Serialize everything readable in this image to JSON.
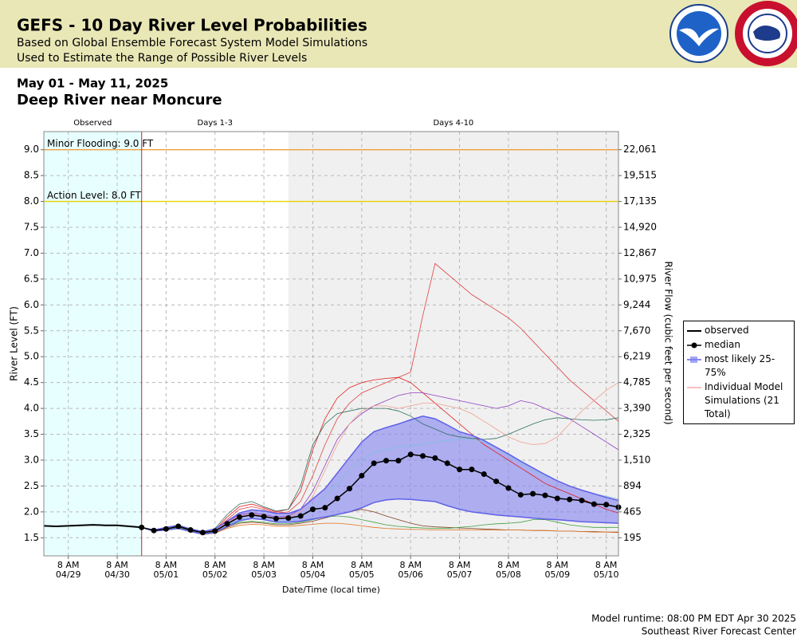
{
  "header": {
    "title": "GEFS - 10 Day River Level Probabilities",
    "subtitle1": "Based on Global Ensemble Forecast System Model Simulations",
    "subtitle2": "Used to Estimate the Range of Possible River Levels"
  },
  "chart_data": {
    "type": "hydrograph",
    "date_range": "May 01 - May 11, 2025",
    "title": "Deep River near Moncure",
    "ylabel": "River Level (FT)",
    "y2label": "River Flow (cubic feet per second)",
    "xlabel": "Date/Time (local time)",
    "ylim": [
      1.15,
      9.35
    ],
    "yticks": [
      {
        "value": 1.5,
        "label": "1.5"
      },
      {
        "value": 2,
        "label": "2.0"
      },
      {
        "value": 2.5,
        "label": "2.5"
      },
      {
        "value": 3,
        "label": "3.0"
      },
      {
        "value": 3.5,
        "label": "3.5"
      },
      {
        "value": 4,
        "label": "4.0"
      },
      {
        "value": 4.5,
        "label": "4.5"
      },
      {
        "value": 5,
        "label": "5.0"
      },
      {
        "value": 5.5,
        "label": "5.5"
      },
      {
        "value": 6,
        "label": "6.0"
      },
      {
        "value": 6.5,
        "label": "6.5"
      },
      {
        "value": 7,
        "label": "7.0"
      },
      {
        "value": 7.5,
        "label": "7.5"
      },
      {
        "value": 8,
        "label": "8.0"
      },
      {
        "value": 8.5,
        "label": "8.5"
      },
      {
        "value": 9,
        "label": "9.0"
      }
    ],
    "y2ticks": [
      {
        "value": 195,
        "label": "195"
      },
      {
        "value": 465,
        "label": "465"
      },
      {
        "value": 894,
        "label": "894"
      },
      {
        "value": 1510,
        "label": "1,510"
      },
      {
        "value": 2325,
        "label": "2,325"
      },
      {
        "value": 3390,
        "label": "3,390"
      },
      {
        "value": 4785,
        "label": "4,785"
      },
      {
        "value": 6219,
        "label": "6,219"
      },
      {
        "value": 7670,
        "label": "7,670"
      },
      {
        "value": 9244,
        "label": "9,244"
      },
      {
        "value": 10975,
        "label": "10,975"
      },
      {
        "value": 12867,
        "label": "12,867"
      },
      {
        "value": 14920,
        "label": "14,920"
      },
      {
        "value": 17135,
        "label": "17,135"
      },
      {
        "value": 19515,
        "label": "19,515"
      },
      {
        "value": 22061,
        "label": "22,061"
      }
    ],
    "xlim": [
      "2025-04-28T20:00",
      "2025-05-10T14:00"
    ],
    "xticks": [
      {
        "value": "2025-04-29T08:00",
        "label": "8 AM",
        "date": "04/29"
      },
      {
        "value": "2025-04-30T08:00",
        "label": "8 AM",
        "date": "04/30"
      },
      {
        "value": "2025-05-01T08:00",
        "label": "8 AM",
        "date": "05/01"
      },
      {
        "value": "2025-05-02T08:00",
        "label": "8 AM",
        "date": "05/02"
      },
      {
        "value": "2025-05-03T08:00",
        "label": "8 AM",
        "date": "05/03"
      },
      {
        "value": "2025-05-04T08:00",
        "label": "8 AM",
        "date": "05/04"
      },
      {
        "value": "2025-05-05T08:00",
        "label": "8 AM",
        "date": "05/05"
      },
      {
        "value": "2025-05-06T08:00",
        "label": "8 AM",
        "date": "05/06"
      },
      {
        "value": "2025-05-07T08:00",
        "label": "8 AM",
        "date": "05/07"
      },
      {
        "value": "2025-05-08T08:00",
        "label": "8 AM",
        "date": "05/08"
      },
      {
        "value": "2025-05-09T08:00",
        "label": "8 AM",
        "date": "05/09"
      },
      {
        "value": "2025-05-10T08:00",
        "label": "8 AM",
        "date": "05/10"
      }
    ],
    "grid": true,
    "regions": [
      {
        "label": "Observed",
        "start": "2025-04-28T20:00",
        "end": "2025-04-30T20:00",
        "color": "#e8ffff"
      },
      {
        "label": "Days 1-3",
        "start": "2025-04-30T20:00",
        "end": "2025-05-03T20:00",
        "color": "#ffffff"
      },
      {
        "label": "Days 4-10",
        "start": "2025-05-03T20:00",
        "end": "2025-05-10T14:00",
        "color": "#f0f0f0"
      }
    ],
    "thresholds": [
      {
        "label": "Minor Flooding: 9.0 FT",
        "value": 9,
        "color": "#f0a040"
      },
      {
        "label": "Action Level: 8.0 FT",
        "value": 8,
        "color": "#e8d400"
      }
    ],
    "x": [
      "2025-04-30T20:00",
      "2025-05-01T02:00",
      "2025-05-01T08:00",
      "2025-05-01T14:00",
      "2025-05-01T20:00",
      "2025-05-02T02:00",
      "2025-05-02T08:00",
      "2025-05-02T14:00",
      "2025-05-02T20:00",
      "2025-05-03T02:00",
      "2025-05-03T08:00",
      "2025-05-03T14:00",
      "2025-05-03T20:00",
      "2025-05-04T02:00",
      "2025-05-04T08:00",
      "2025-05-04T14:00",
      "2025-05-04T20:00",
      "2025-05-05T02:00",
      "2025-05-05T08:00",
      "2025-05-05T14:00",
      "2025-05-05T20:00",
      "2025-05-06T02:00",
      "2025-05-06T08:00",
      "2025-05-06T14:00",
      "2025-05-06T20:00",
      "2025-05-07T02:00",
      "2025-05-07T08:00",
      "2025-05-07T14:00",
      "2025-05-07T20:00",
      "2025-05-08T02:00",
      "2025-05-08T08:00",
      "2025-05-08T14:00",
      "2025-05-08T20:00",
      "2025-05-09T02:00",
      "2025-05-09T08:00",
      "2025-05-09T14:00",
      "2025-05-09T20:00",
      "2025-05-10T02:00",
      "2025-05-10T08:00",
      "2025-05-10T14:00"
    ],
    "observed": {
      "name": "observed",
      "color": "#000000",
      "x": [
        "2025-04-28T20:00",
        "2025-04-29T02:00",
        "2025-04-29T08:00",
        "2025-04-29T14:00",
        "2025-04-29T20:00",
        "2025-04-30T02:00",
        "2025-04-30T08:00",
        "2025-04-30T14:00",
        "2025-04-30T20:00"
      ],
      "values": [
        1.73,
        1.72,
        1.73,
        1.74,
        1.75,
        1.74,
        1.74,
        1.72,
        1.7
      ]
    },
    "band": {
      "name": "most likely 25-75%",
      "color": "#8080f0",
      "upper": [
        1.7,
        1.65,
        1.7,
        1.74,
        1.67,
        1.62,
        1.67,
        1.82,
        1.98,
        2.04,
        2.02,
        1.97,
        1.97,
        2.05,
        2.25,
        2.45,
        2.75,
        3.05,
        3.35,
        3.55,
        3.63,
        3.7,
        3.78,
        3.85,
        3.8,
        3.68,
        3.55,
        3.48,
        3.38,
        3.25,
        3.12,
        2.98,
        2.85,
        2.72,
        2.6,
        2.5,
        2.42,
        2.35,
        2.28,
        2.22
      ],
      "lower": [
        1.7,
        1.63,
        1.65,
        1.68,
        1.62,
        1.57,
        1.6,
        1.72,
        1.83,
        1.87,
        1.85,
        1.8,
        1.8,
        1.82,
        1.86,
        1.9,
        1.95,
        2.0,
        2.08,
        2.18,
        2.23,
        2.25,
        2.24,
        2.22,
        2.2,
        2.12,
        2.05,
        2.0,
        1.97,
        1.94,
        1.92,
        1.9,
        1.88,
        1.86,
        1.85,
        1.83,
        1.81,
        1.8,
        1.79,
        1.78
      ]
    },
    "median": {
      "name": "median",
      "color": "#000000",
      "values": [
        1.7,
        1.64,
        1.67,
        1.72,
        1.65,
        1.6,
        1.63,
        1.77,
        1.9,
        1.94,
        1.91,
        1.87,
        1.88,
        1.92,
        2.05,
        2.08,
        2.26,
        2.45,
        2.7,
        2.94,
        2.99,
        2.99,
        3.11,
        3.08,
        3.04,
        2.94,
        2.82,
        2.82,
        2.73,
        2.59,
        2.46,
        2.33,
        2.35,
        2.32,
        2.26,
        2.24,
        2.22,
        2.15,
        2.14,
        2.09
      ]
    },
    "members": {
      "name": "Individual Model Simulations (21 Total)",
      "color": "#f08080",
      "series": [
        {
          "color": "#e04040",
          "values": [
            1.7,
            1.64,
            1.67,
            1.72,
            1.65,
            1.6,
            1.65,
            1.85,
            2.05,
            2.1,
            2.05,
            1.98,
            2.0,
            2.2,
            2.7,
            3.3,
            3.8,
            4.1,
            4.3,
            4.4,
            4.5,
            4.6,
            4.7,
            5.8,
            6.8,
            6.6,
            6.4,
            6.2,
            6.05,
            5.9,
            5.75,
            5.55,
            5.3,
            5.05,
            4.8,
            4.55,
            4.35,
            4.15,
            3.95,
            3.75
          ]
        },
        {
          "color": "#e02020",
          "values": [
            1.7,
            1.64,
            1.67,
            1.72,
            1.65,
            1.6,
            1.65,
            1.9,
            2.1,
            2.15,
            2.08,
            2.0,
            2.05,
            2.4,
            3.2,
            3.8,
            4.2,
            4.4,
            4.5,
            4.55,
            4.58,
            4.6,
            4.5,
            4.3,
            4.1,
            3.9,
            3.7,
            3.5,
            3.3,
            3.15,
            3.0,
            2.85,
            2.7,
            2.55,
            2.45,
            2.35,
            2.25,
            2.15,
            2.05,
            1.98
          ]
        },
        {
          "color": "#9040c0",
          "values": [
            1.7,
            1.64,
            1.66,
            1.71,
            1.64,
            1.59,
            1.63,
            1.8,
            1.95,
            1.98,
            1.95,
            1.9,
            1.92,
            2.05,
            2.4,
            2.9,
            3.4,
            3.7,
            3.9,
            4.05,
            4.15,
            4.25,
            4.3,
            4.3,
            4.25,
            4.2,
            4.15,
            4.1,
            4.05,
            4.0,
            4.05,
            4.15,
            4.1,
            4.0,
            3.9,
            3.8,
            3.65,
            3.5,
            3.35,
            3.2
          ]
        },
        {
          "color": "#2f6f5f",
          "values": [
            1.7,
            1.64,
            1.67,
            1.73,
            1.66,
            1.61,
            1.68,
            1.95,
            2.15,
            2.2,
            2.1,
            2.02,
            2.05,
            2.5,
            3.3,
            3.7,
            3.9,
            3.95,
            4.0,
            4.0,
            4.0,
            3.95,
            3.85,
            3.7,
            3.6,
            3.5,
            3.45,
            3.42,
            3.4,
            3.42,
            3.5,
            3.6,
            3.7,
            3.78,
            3.82,
            3.8,
            3.78,
            3.77,
            3.78,
            3.82
          ]
        },
        {
          "color": "#f0a090",
          "values": [
            1.7,
            1.64,
            1.67,
            1.72,
            1.65,
            1.6,
            1.64,
            1.8,
            1.92,
            1.96,
            1.92,
            1.88,
            1.9,
            2.0,
            2.3,
            2.8,
            3.3,
            3.7,
            3.95,
            4.05,
            4.05,
            4.0,
            4.05,
            4.1,
            4.1,
            4.05,
            4.0,
            3.9,
            3.75,
            3.6,
            3.45,
            3.35,
            3.3,
            3.32,
            3.45,
            3.7,
            3.95,
            4.15,
            4.35,
            4.5
          ]
        },
        {
          "color": "#80c0e0",
          "values": [
            1.7,
            1.64,
            1.66,
            1.7,
            1.63,
            1.58,
            1.62,
            1.75,
            1.85,
            1.88,
            1.86,
            1.82,
            1.83,
            1.9,
            2.05,
            2.3,
            2.55,
            2.8,
            3.0,
            3.15,
            3.2,
            3.25,
            3.28,
            3.3,
            3.35,
            3.38,
            3.4,
            3.4,
            3.35,
            3.25,
            3.1,
            2.95,
            2.8,
            2.7,
            2.6,
            2.5,
            2.42,
            2.35,
            2.3,
            2.25
          ]
        },
        {
          "color": "#804020",
          "values": [
            1.7,
            1.64,
            1.66,
            1.7,
            1.62,
            1.57,
            1.6,
            1.7,
            1.78,
            1.8,
            1.78,
            1.75,
            1.75,
            1.78,
            1.82,
            1.88,
            1.95,
            2.0,
            2.05,
            2.0,
            1.92,
            1.85,
            1.78,
            1.73,
            1.71,
            1.7,
            1.69,
            1.68,
            1.67,
            1.66,
            1.65,
            1.65,
            1.64,
            1.64,
            1.63,
            1.63,
            1.62,
            1.62,
            1.61,
            1.61
          ]
        },
        {
          "color": "#e07020",
          "values": [
            1.7,
            1.63,
            1.65,
            1.69,
            1.62,
            1.56,
            1.59,
            1.68,
            1.74,
            1.76,
            1.75,
            1.72,
            1.72,
            1.74,
            1.76,
            1.78,
            1.78,
            1.76,
            1.73,
            1.7,
            1.68,
            1.67,
            1.66,
            1.66,
            1.65,
            1.65,
            1.65,
            1.65,
            1.65,
            1.65,
            1.65,
            1.65,
            1.64,
            1.64,
            1.63,
            1.63,
            1.62,
            1.61,
            1.61,
            1.6
          ]
        },
        {
          "color": "#40a040",
          "values": [
            1.7,
            1.64,
            1.66,
            1.7,
            1.63,
            1.58,
            1.61,
            1.72,
            1.8,
            1.82,
            1.8,
            1.77,
            1.77,
            1.8,
            1.85,
            1.9,
            1.92,
            1.9,
            1.85,
            1.8,
            1.75,
            1.72,
            1.7,
            1.69,
            1.68,
            1.68,
            1.7,
            1.72,
            1.75,
            1.77,
            1.78,
            1.8,
            1.85,
            1.85,
            1.8,
            1.75,
            1.72,
            1.7,
            1.7,
            1.7
          ]
        }
      ]
    }
  },
  "footer": {
    "runtime": "Model runtime: 08:00 PM EDT Apr 30 2025",
    "center": "Southeast River Forecast Center"
  }
}
